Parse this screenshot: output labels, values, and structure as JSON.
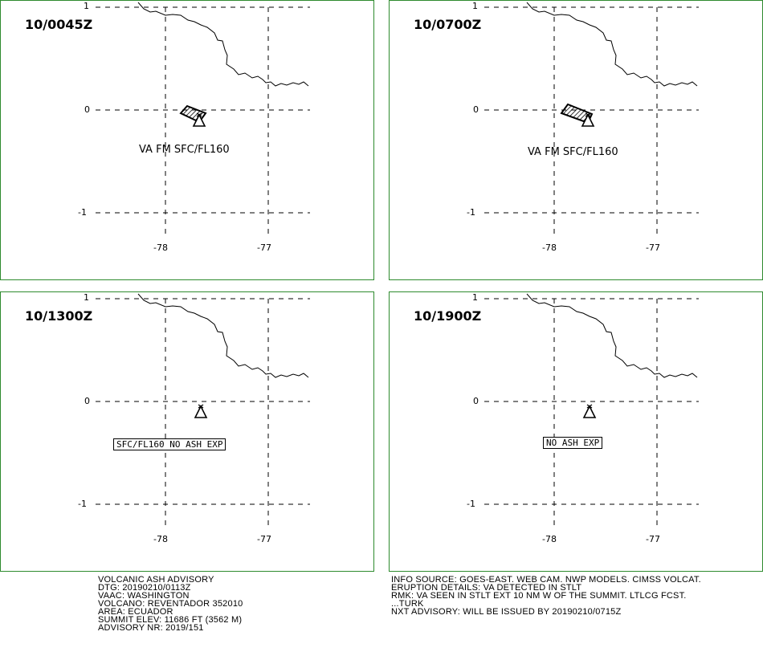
{
  "panels": [
    {
      "title": "10/0045Z",
      "y_ticks": [
        "1",
        "0",
        "-1"
      ],
      "x_ticks": [
        "-78",
        "-77"
      ],
      "annotation": "VA FM SFC/FL160",
      "annotation_style": "plain",
      "ash_polygon": "present"
    },
    {
      "title": "10/0700Z",
      "y_ticks": [
        "1",
        "0",
        "-1"
      ],
      "x_ticks": [
        "-78",
        "-77"
      ],
      "annotation": "VA FM SFC/FL160",
      "annotation_style": "plain",
      "ash_polygon": "present"
    },
    {
      "title": "10/1300Z",
      "y_ticks": [
        "1",
        "0",
        "-1"
      ],
      "x_ticks": [
        "-78",
        "-77"
      ],
      "annotation": "SFC/FL160 NO ASH EXP",
      "annotation_style": "boxed",
      "ash_polygon": "none"
    },
    {
      "title": "10/1900Z",
      "y_ticks": [
        "1",
        "0",
        "-1"
      ],
      "x_ticks": [
        "-78",
        "-77"
      ],
      "annotation": "NO ASH EXP",
      "annotation_style": "boxed",
      "ash_polygon": "none"
    }
  ],
  "advisory_left": [
    "VOLCANIC ASH ADVISORY",
    "DTG: 20190210/0113Z",
    "VAAC: WASHINGTON",
    "VOLCANO: REVENTADOR 352010",
    "AREA: ECUADOR",
    "SUMMIT ELEV: 11686 FT (3562 M)",
    "ADVISORY NR: 2019/151"
  ],
  "advisory_right": [
    "INFO SOURCE: GOES-EAST. WEB CAM. NWP MODELS. CIMSS VOLCAT.",
    "ERUPTION DETAILS: VA DETECTED IN STLT",
    "RMK: VA SEEN IN STLT EXT 10 NM W OF THE SUMMIT. LTLCG FCST.",
    "...TURK",
    "NXT ADVISORY: WILL BE ISSUED BY 20190210/0715Z"
  ],
  "colors": {
    "panel_border": "#2e8b2e",
    "ink": "#000000"
  },
  "icons": {
    "volcano": "volcano-triangle-icon",
    "ash": "hatched-polygon"
  }
}
